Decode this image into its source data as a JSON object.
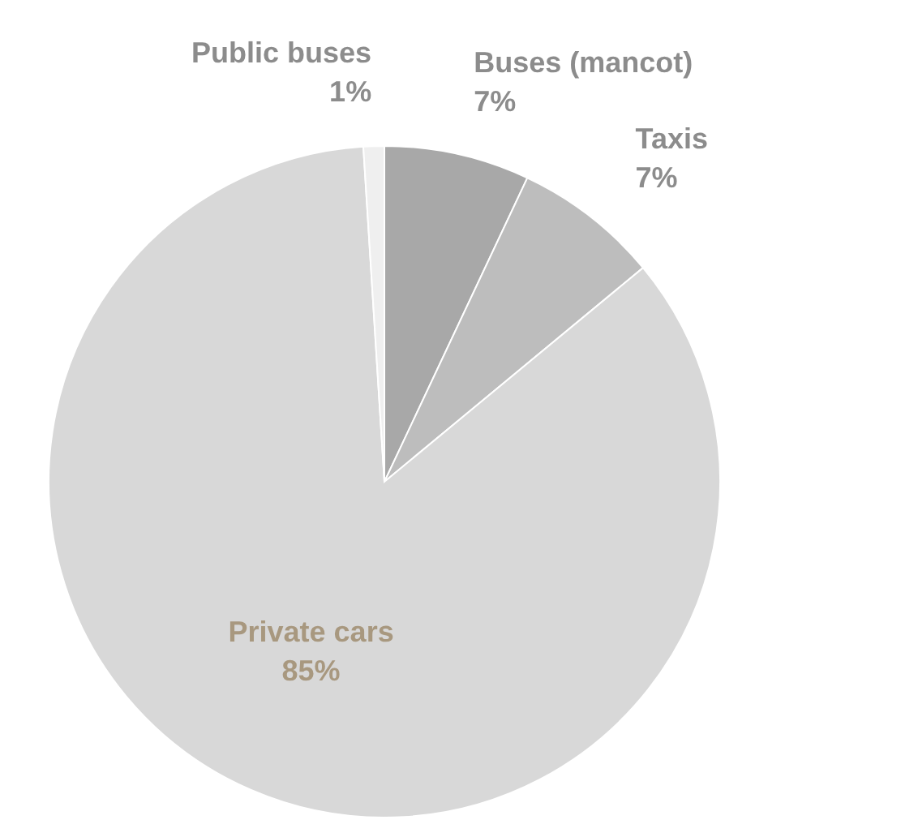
{
  "chart_data": {
    "type": "pie",
    "categories": [
      "Buses (mancot)",
      "Taxis",
      "Private cars",
      "Public buses"
    ],
    "values": [
      7,
      7,
      85,
      1
    ],
    "colors": [
      "#a8a8a8",
      "#bdbdbd",
      "#d8d8d8",
      "#efefef"
    ],
    "value_labels": [
      "7%",
      "7%",
      "85%",
      "1%"
    ]
  }
}
